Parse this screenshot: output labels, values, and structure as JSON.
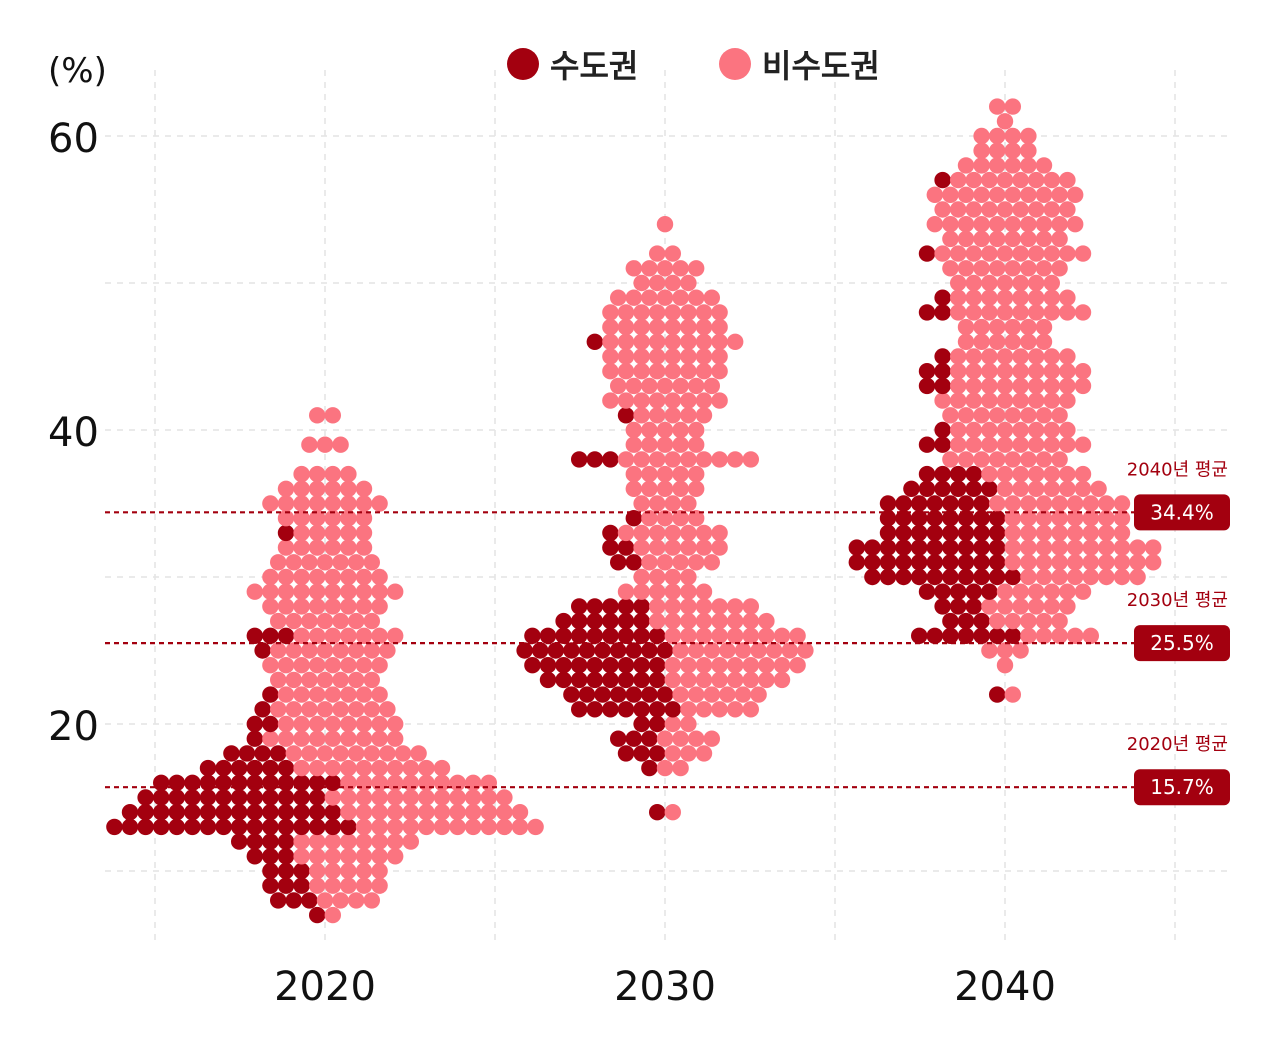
{
  "chart_data": {
    "type": "scatter",
    "title": "",
    "xlabel": "",
    "ylabel": "(%)",
    "x_categories": [
      "2020",
      "2030",
      "2040"
    ],
    "y_ticks": [
      "20",
      "40",
      "60"
    ],
    "ylim": [
      4,
      63
    ],
    "grid": true,
    "legend_position": "top-center",
    "colors": {
      "capital": "#a3000f",
      "non_capital": "#fb7480",
      "ref_line": "#a3000f"
    },
    "series": [
      {
        "name": "수도권",
        "color": "#a3000f",
        "estimated_median": {
          "2020": 14,
          "2030": 25,
          "2040": 32
        }
      },
      {
        "name": "비수도권",
        "color": "#fb7480",
        "estimated_median": {
          "2020": 22,
          "2030": 35,
          "2040": 42
        }
      }
    ],
    "reference_lines": [
      {
        "label": "2040년 평균",
        "value_text": "34.4%",
        "value": 34.4
      },
      {
        "label": "2030년 평균",
        "value_text": "25.5%",
        "value": 25.5
      },
      {
        "label": "2020년 평균",
        "value_text": "15.7%",
        "value": 15.7
      }
    ],
    "beeswarm_profile": {
      "2020": {
        "nc": [
          [
            41,
            2
          ],
          [
            39,
            3
          ],
          [
            37,
            4
          ],
          [
            36,
            6
          ],
          [
            35,
            8
          ],
          [
            34,
            6
          ],
          [
            33,
            5
          ],
          [
            32,
            6
          ],
          [
            31,
            7
          ],
          [
            30,
            8
          ],
          [
            29,
            10
          ],
          [
            28,
            8
          ],
          [
            27,
            7
          ],
          [
            26,
            7
          ],
          [
            25,
            8
          ],
          [
            24,
            8
          ],
          [
            23,
            7
          ],
          [
            22,
            7
          ],
          [
            21,
            8
          ],
          [
            20,
            8
          ],
          [
            19,
            9
          ],
          [
            18,
            9
          ],
          [
            17,
            10
          ],
          [
            16,
            10
          ],
          [
            15,
            12
          ],
          [
            14,
            12
          ],
          [
            13,
            12
          ],
          [
            12,
            8
          ],
          [
            11,
            7
          ],
          [
            10,
            5
          ],
          [
            9,
            5
          ],
          [
            8,
            4
          ],
          [
            7,
            1
          ]
        ],
        "c": [
          [
            33,
            1
          ],
          [
            26,
            3
          ],
          [
            25,
            1
          ],
          [
            22,
            1
          ],
          [
            21,
            1
          ],
          [
            20,
            2
          ],
          [
            19,
            1
          ],
          [
            18,
            4
          ],
          [
            17,
            6
          ],
          [
            16,
            12
          ],
          [
            15,
            12
          ],
          [
            14,
            14
          ],
          [
            13,
            16
          ],
          [
            12,
            4
          ],
          [
            11,
            3
          ],
          [
            10,
            3
          ],
          [
            9,
            3
          ],
          [
            8,
            3
          ],
          [
            7,
            1
          ]
        ]
      },
      "2030": {
        "nc": [
          [
            54,
            1
          ],
          [
            52,
            2
          ],
          [
            51,
            5
          ],
          [
            50,
            4
          ],
          [
            49,
            7
          ],
          [
            48,
            8
          ],
          [
            47,
            8
          ],
          [
            46,
            9
          ],
          [
            45,
            8
          ],
          [
            44,
            8
          ],
          [
            43,
            7
          ],
          [
            42,
            8
          ],
          [
            41,
            5
          ],
          [
            40,
            5
          ],
          [
            39,
            5
          ],
          [
            38,
            9
          ],
          [
            37,
            5
          ],
          [
            36,
            5
          ],
          [
            35,
            4
          ],
          [
            34,
            4
          ],
          [
            33,
            7
          ],
          [
            32,
            6
          ],
          [
            31,
            5
          ],
          [
            30,
            4
          ],
          [
            29,
            6
          ],
          [
            28,
            7
          ],
          [
            27,
            8
          ],
          [
            26,
            9
          ],
          [
            25,
            9
          ],
          [
            24,
            9
          ],
          [
            23,
            8
          ],
          [
            22,
            6
          ],
          [
            21,
            5
          ],
          [
            20,
            2
          ],
          [
            19,
            4
          ],
          [
            18,
            3
          ],
          [
            17,
            2
          ],
          [
            14,
            1
          ]
        ],
        "c": [
          [
            46,
            1
          ],
          [
            41,
            1
          ],
          [
            38,
            3
          ],
          [
            34,
            1
          ],
          [
            33,
            1
          ],
          [
            32,
            2
          ],
          [
            31,
            2
          ],
          [
            28,
            5
          ],
          [
            27,
            6
          ],
          [
            26,
            9
          ],
          [
            25,
            10
          ],
          [
            24,
            9
          ],
          [
            23,
            8
          ],
          [
            22,
            7
          ],
          [
            21,
            7
          ],
          [
            20,
            2
          ],
          [
            19,
            3
          ],
          [
            18,
            3
          ],
          [
            17,
            1
          ],
          [
            14,
            1
          ]
        ]
      },
      "2040": {
        "nc": [
          [
            62,
            2
          ],
          [
            61,
            1
          ],
          [
            60,
            4
          ],
          [
            59,
            4
          ],
          [
            58,
            6
          ],
          [
            57,
            8
          ],
          [
            56,
            10
          ],
          [
            55,
            9
          ],
          [
            54,
            10
          ],
          [
            53,
            8
          ],
          [
            52,
            10
          ],
          [
            51,
            8
          ],
          [
            50,
            7
          ],
          [
            49,
            8
          ],
          [
            48,
            9
          ],
          [
            47,
            6
          ],
          [
            46,
            6
          ],
          [
            45,
            8
          ],
          [
            44,
            9
          ],
          [
            43,
            9
          ],
          [
            42,
            9
          ],
          [
            41,
            8
          ],
          [
            40,
            8
          ],
          [
            39,
            9
          ],
          [
            38,
            8
          ],
          [
            37,
            7
          ],
          [
            36,
            7
          ],
          [
            35,
            9
          ],
          [
            34,
            8
          ],
          [
            33,
            8
          ],
          [
            32,
            10
          ],
          [
            31,
            10
          ],
          [
            30,
            8
          ],
          [
            29,
            6
          ],
          [
            28,
            6
          ],
          [
            27,
            5
          ],
          [
            26,
            5
          ],
          [
            25,
            3
          ],
          [
            24,
            1
          ],
          [
            22,
            1
          ]
        ],
        "c": [
          [
            57,
            1
          ],
          [
            52,
            1
          ],
          [
            49,
            1
          ],
          [
            48,
            2
          ],
          [
            45,
            1
          ],
          [
            44,
            2
          ],
          [
            43,
            2
          ],
          [
            40,
            1
          ],
          [
            39,
            2
          ],
          [
            37,
            4
          ],
          [
            36,
            6
          ],
          [
            35,
            7
          ],
          [
            34,
            8
          ],
          [
            33,
            8
          ],
          [
            32,
            10
          ],
          [
            31,
            10
          ],
          [
            30,
            10
          ],
          [
            29,
            5
          ],
          [
            28,
            3
          ],
          [
            27,
            3
          ],
          [
            26,
            7
          ],
          [
            22,
            1
          ]
        ]
      }
    }
  }
}
